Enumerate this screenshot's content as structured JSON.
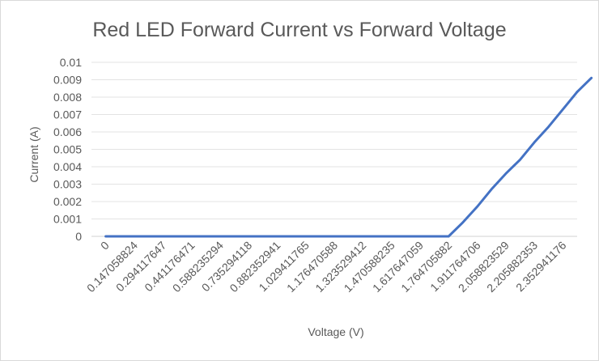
{
  "chart_data": {
    "type": "line",
    "title": "Red LED Forward Current vs Forward Voltage",
    "xlabel": "Voltage (V)",
    "ylabel": "Current (A)",
    "ylim": [
      0,
      0.01
    ],
    "y_ticks": [
      "0.01",
      "0.009",
      "0.008",
      "0.007",
      "0.006",
      "0.005",
      "0.004",
      "0.003",
      "0.002",
      "0.001",
      "0"
    ],
    "x_ticks": [
      "0",
      "0.147058824",
      "0.294117647",
      "0.441176471",
      "0.588235294",
      "0.735294118",
      "0.882352941",
      "1.029411765",
      "1.176470588",
      "1.323529412",
      "1.470588235",
      "1.617647059",
      "1.764705882",
      "1.911764706",
      "2.058823529",
      "2.205882353",
      "2.352941176"
    ],
    "grid": true,
    "legend": "none",
    "series_color": "#4472c4",
    "series": [
      {
        "x": [
          0,
          0.147058824,
          0.294117647,
          0.441176471,
          0.588235294,
          0.735294118,
          0.882352941,
          1.029411765,
          1.176470588,
          1.323529412,
          1.470588235,
          1.617647059,
          1.764705882,
          1.838235294,
          1.911764706,
          1.985294118,
          2.058823529,
          2.132352941,
          2.205882353,
          2.279411765,
          2.352941176,
          2.426470588
        ],
        "values": [
          0,
          0,
          0,
          0,
          0,
          0,
          0,
          0,
          0,
          0,
          0,
          0,
          0,
          0.0008,
          0.0017,
          0.0027,
          0.0036,
          0.0044,
          0.0054,
          0.0063,
          0.0073,
          0.0083
        ]
      },
      {
        "x": [
          2.426470588,
          2.5
        ],
        "values": [
          0.0083,
          0.0091
        ]
      }
    ]
  }
}
